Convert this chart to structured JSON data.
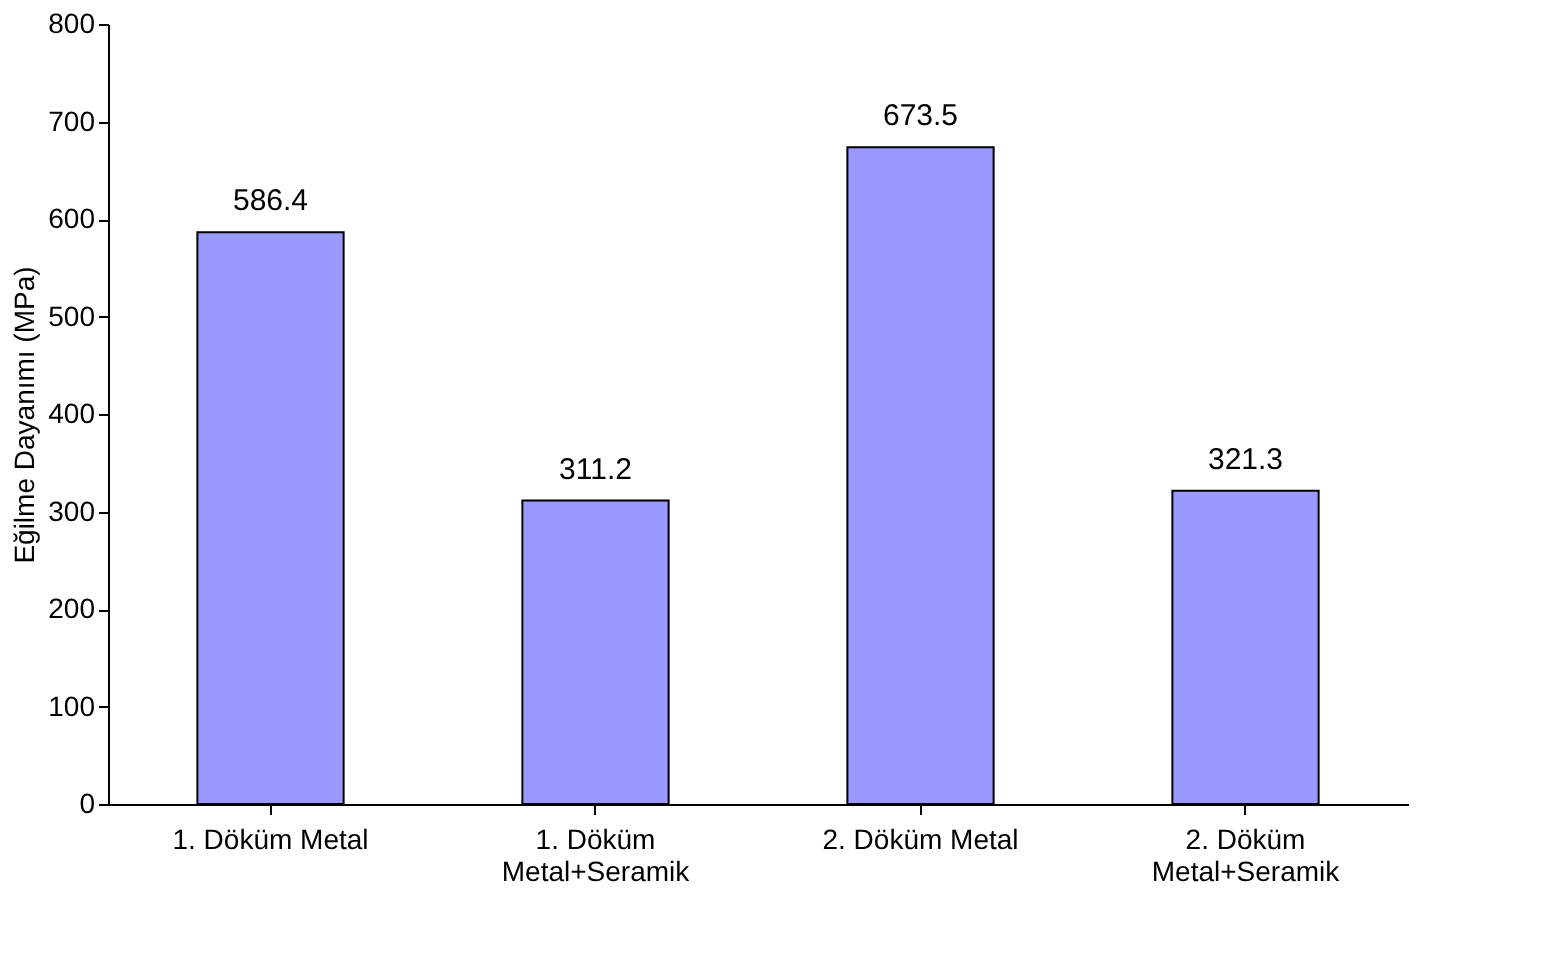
{
  "chart_data": {
    "type": "bar",
    "ylabel": "Eğilme Dayanımı (MPa)",
    "categories": [
      "1. Döküm Metal",
      "1. Döküm\nMetal+Seramik",
      "2. Döküm Metal",
      "2. Döküm\nMetal+Seramik"
    ],
    "values": [
      586.4,
      311.2,
      673.5,
      321.3
    ],
    "color": "#9999ff",
    "ylim": [
      0,
      800
    ],
    "yticks": [
      0,
      100,
      200,
      300,
      400,
      500,
      600,
      700,
      800
    ],
    "grid": false,
    "data_labels": true
  }
}
